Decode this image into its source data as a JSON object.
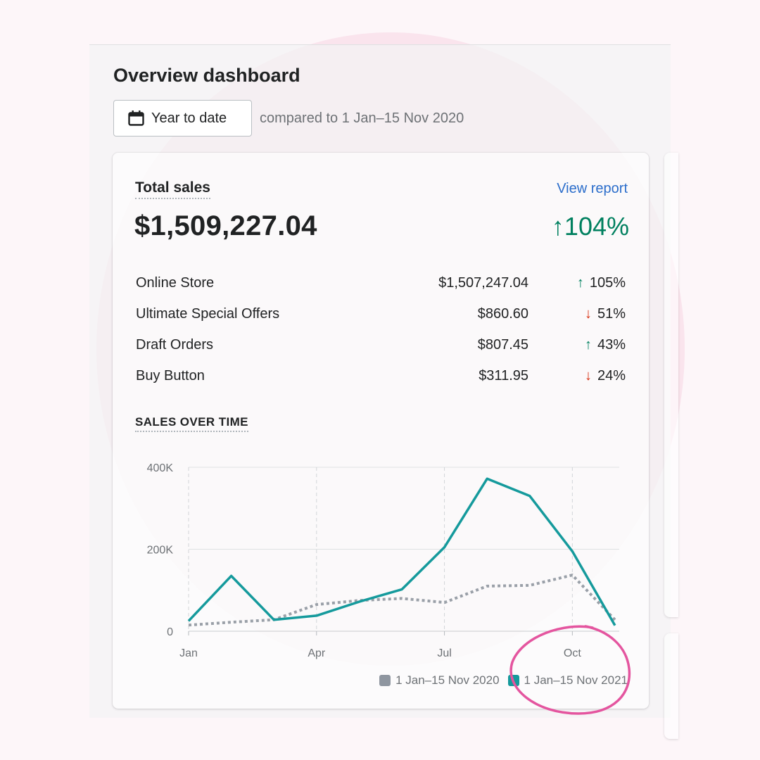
{
  "header": {
    "title": "Overview dashboard",
    "date_button_label": "Year to date",
    "compare_text": "compared to 1 Jan–15 Nov 2020"
  },
  "total_sales": {
    "title": "Total sales",
    "link_label": "View report",
    "value": "$1,509,227.04",
    "change": "104%",
    "change_arrow": "↑",
    "breakdown": [
      {
        "name": "Online Store",
        "value": "$1,507,247.04",
        "change": "105%",
        "arrow": "↑",
        "direction": "up"
      },
      {
        "name": "Ultimate Special Offers",
        "value": "$860.60",
        "change": "51%",
        "arrow": "↓",
        "direction": "down"
      },
      {
        "name": "Draft Orders",
        "value": "$807.45",
        "change": "43%",
        "arrow": "↑",
        "direction": "up"
      },
      {
        "name": "Buy Button",
        "value": "$311.95",
        "change": "24%",
        "arrow": "↓",
        "direction": "down"
      }
    ]
  },
  "sales_over_time": {
    "title": "SALES OVER TIME"
  },
  "chart_data": {
    "type": "line",
    "title": "",
    "x_ticks": [
      "Jan",
      "Apr",
      "Jul",
      "Oct"
    ],
    "x_tick_positions": [
      0,
      3,
      6,
      9
    ],
    "y_ticks": [
      "0",
      "200K",
      "400K"
    ],
    "y_tick_values": [
      0,
      200000,
      400000
    ],
    "ylim": [
      0,
      400000
    ],
    "xlim": [
      0,
      10.1
    ],
    "grid": true,
    "legend_position": "bottom-right",
    "series": [
      {
        "name": "1 Jan–15 Nov 2020",
        "color": "#9aa0a8",
        "style": "dotted",
        "x": [
          0,
          1,
          2,
          3,
          4,
          5,
          6,
          7,
          8,
          9,
          10
        ],
        "values": [
          15000,
          22000,
          28000,
          65000,
          75000,
          80000,
          70000,
          110000,
          112000,
          137000,
          28000
        ]
      },
      {
        "name": "1 Jan–15 Nov 2021",
        "color": "#159a9c",
        "style": "solid",
        "x": [
          0,
          1,
          2,
          3,
          4,
          5,
          6,
          7,
          8,
          9,
          10
        ],
        "values": [
          25000,
          135000,
          28000,
          38000,
          72000,
          102000,
          205000,
          372000,
          330000,
          195000,
          14000
        ]
      }
    ]
  },
  "colors": {
    "accent": "#2c6ecb",
    "positive": "#00805f",
    "negative": "#d72c0d",
    "highlight_circle": "#e4559f"
  }
}
